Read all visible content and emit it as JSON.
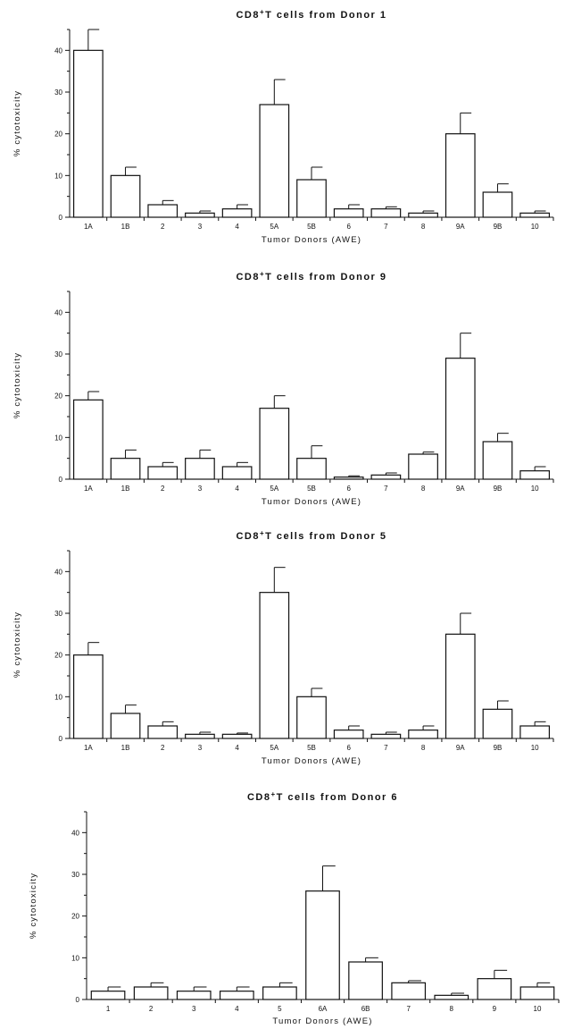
{
  "chart_data": [
    {
      "type": "bar",
      "title_main": "CD8",
      "title_sup": "+",
      "title_rest": "T cells from Donor 1",
      "xlabel": "Tumor Donors (AWE)",
      "ylabel": "% cytotoxicity",
      "ylim": [
        0,
        45
      ],
      "yticks": [
        0,
        10,
        20,
        30,
        40
      ],
      "categories": [
        "1A",
        "1B",
        "2",
        "3",
        "4",
        "5A",
        "5B",
        "6",
        "7",
        "8",
        "9A",
        "9B",
        "10"
      ],
      "values": [
        40,
        10,
        3,
        1,
        2,
        27,
        9,
        2,
        2,
        1,
        20,
        6,
        1
      ],
      "errors": [
        5,
        2,
        1,
        0.5,
        1,
        6,
        3,
        1,
        0.5,
        0.5,
        5,
        2,
        0.5
      ]
    },
    {
      "type": "bar",
      "title_main": "CD8",
      "title_sup": "+",
      "title_rest": "T cells from Donor 9",
      "xlabel": "Tumor Donors (AWE)",
      "ylabel": "% cytotoxicity",
      "ylim": [
        0,
        45
      ],
      "yticks": [
        0,
        10,
        20,
        30,
        40
      ],
      "categories": [
        "1A",
        "1B",
        "2",
        "3",
        "4",
        "5A",
        "5B",
        "6",
        "7",
        "8",
        "9A",
        "9B",
        "10"
      ],
      "values": [
        19,
        5,
        3,
        5,
        3,
        17,
        5,
        0.5,
        1,
        6,
        29,
        9,
        2
      ],
      "errors": [
        2,
        2,
        1,
        2,
        1,
        3,
        3,
        0.3,
        0.5,
        0.5,
        6,
        2,
        1
      ]
    },
    {
      "type": "bar",
      "title_main": "CD8",
      "title_sup": "+",
      "title_rest": "T cells from Donor 5",
      "xlabel": "Tumor Donors (AWE)",
      "ylabel": "% cytotoxicity",
      "ylim": [
        0,
        45
      ],
      "yticks": [
        0,
        10,
        20,
        30,
        40
      ],
      "categories": [
        "1A",
        "1B",
        "2",
        "3",
        "4",
        "5A",
        "5B",
        "6",
        "7",
        "8",
        "9A",
        "9B",
        "10"
      ],
      "values": [
        20,
        6,
        3,
        1,
        1,
        35,
        10,
        2,
        1,
        2,
        25,
        7,
        3
      ],
      "errors": [
        3,
        2,
        1,
        0.5,
        0.3,
        6,
        2,
        1,
        0.5,
        1,
        5,
        2,
        1
      ]
    },
    {
      "type": "bar",
      "title_main": "CD8",
      "title_sup": "+",
      "title_rest": "T cells from Donor 6",
      "xlabel": "Tumor Donors (AWE)",
      "ylabel": "% cytotoxicity",
      "ylim": [
        0,
        45
      ],
      "yticks": [
        0,
        10,
        20,
        30,
        40
      ],
      "categories": [
        "1",
        "2",
        "3",
        "4",
        "5",
        "6A",
        "6B",
        "7",
        "8",
        "9",
        "10"
      ],
      "values": [
        2,
        3,
        2,
        2,
        3,
        26,
        9,
        4,
        1,
        5,
        3
      ],
      "errors": [
        1,
        1,
        1,
        1,
        1,
        6,
        1,
        0.5,
        0.5,
        2,
        1
      ]
    }
  ]
}
